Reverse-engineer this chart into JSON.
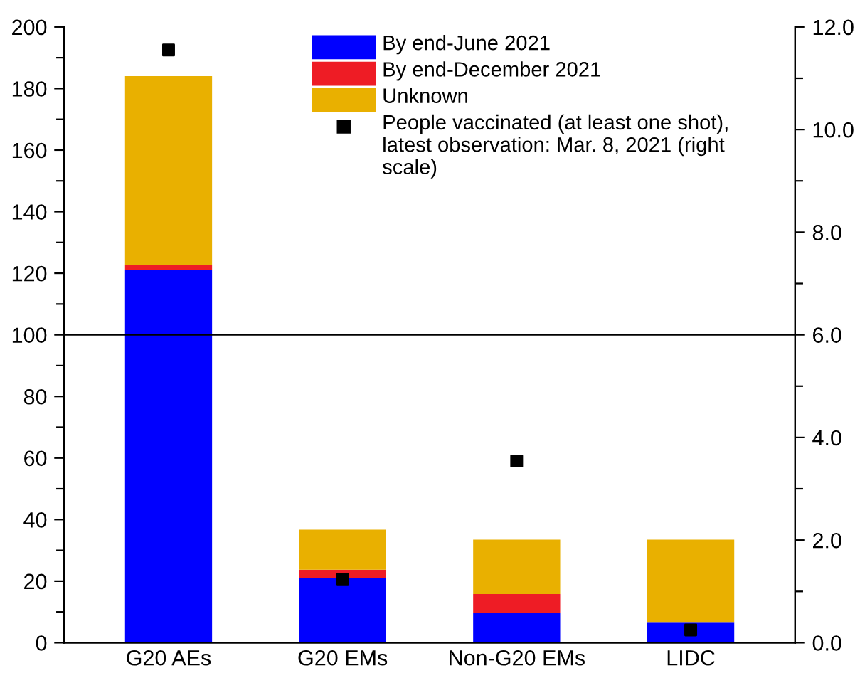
{
  "chart_data": {
    "type": "bar",
    "stacked": true,
    "categories": [
      "G20 AEs",
      "G20 EMs",
      "Non-G20 EMs",
      "LIDC"
    ],
    "series": [
      {
        "name": "By end-June 2021",
        "color": "#0000ff",
        "values": [
          121,
          21,
          9.8,
          6.5
        ]
      },
      {
        "name": "By end-December 2021",
        "color": "#ee1c25",
        "values": [
          1.8,
          2.7,
          6,
          0
        ]
      },
      {
        "name": "Unknown",
        "color": "#e9b000",
        "values": [
          61.2,
          13,
          17.7,
          27
        ]
      },
      {
        "name": "People vaccinated (at least one shot), latest observation: Mar. 8, 2021 (right scale)",
        "type": "scatter",
        "axis": "y2",
        "color": "#000000",
        "marker": "square",
        "x": [
          "G20 AEs",
          "G20 EMs",
          "Non-G20 EMs",
          "LIDC"
        ],
        "values": [
          11.55,
          1.23,
          3.54,
          0.25
        ]
      }
    ],
    "ylim": [
      0,
      200
    ],
    "yticks": [
      0,
      {
        "value": 10,
        "label": null
      },
      20,
      {
        "value": 30,
        "label": null
      },
      40,
      {
        "value": 50,
        "label": null
      },
      60,
      {
        "value": 70,
        "label": null
      },
      80,
      {
        "value": 90,
        "label": null
      },
      100,
      {
        "value": 110,
        "label": null
      },
      120,
      {
        "value": 130,
        "label": null
      },
      140,
      {
        "value": 150,
        "label": null
      },
      160,
      {
        "value": 170,
        "label": null
      },
      180,
      {
        "value": 190,
        "label": null
      },
      200
    ],
    "y2lim": [
      0,
      12
    ],
    "y2ticks": [
      {
        "value": 0,
        "label": "0.0"
      },
      {
        "value": 1,
        "label": null
      },
      {
        "value": 2,
        "label": "2.0"
      },
      {
        "value": 3,
        "label": null
      },
      {
        "value": 4,
        "label": "4.0"
      },
      {
        "value": 5,
        "label": null
      },
      {
        "value": 6,
        "label": "6.0"
      },
      {
        "value": 7,
        "label": null
      },
      {
        "value": 8,
        "label": "8.0"
      },
      {
        "value": 9,
        "label": null
      },
      {
        "value": 10,
        "label": "10.0"
      },
      {
        "value": 11,
        "label": null
      },
      {
        "value": 12,
        "label": "12.0"
      }
    ],
    "ref_lines": [
      {
        "axis": "y",
        "value": 100,
        "color": "#000000"
      }
    ],
    "legend": "top right",
    "grid": false
  }
}
